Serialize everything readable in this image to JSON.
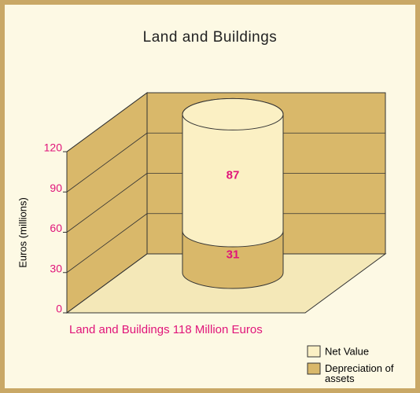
{
  "chart_data": {
    "type": "bar",
    "title": "Land and Buildings",
    "y_label": "Euros (millions)",
    "categories": [
      "Land and Buildings 118 Million Euros"
    ],
    "series": [
      {
        "name": "Net Value",
        "color": "#fbf0c4",
        "values": [
          87
        ]
      },
      {
        "name": "Depreciation of assets",
        "color": "#d9b86a",
        "values": [
          31
        ]
      }
    ],
    "ylim": [
      0,
      120
    ],
    "yticks": [
      0,
      30,
      60,
      90,
      120
    ],
    "grid": true,
    "legend": "bottom-right"
  }
}
